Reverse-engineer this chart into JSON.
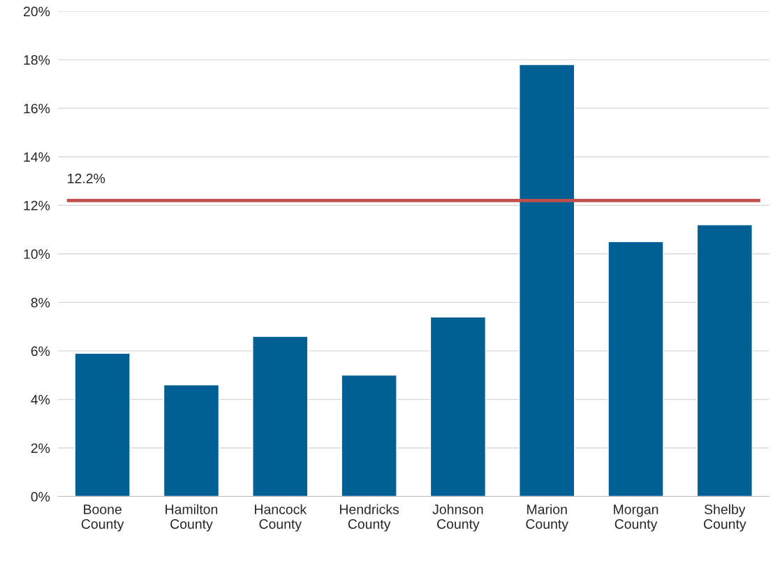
{
  "chart_data": {
    "type": "bar",
    "categories": [
      "Boone\nCounty",
      "Hamilton\nCounty",
      "Hancock\nCounty",
      "Hendricks\nCounty",
      "Johnson\nCounty",
      "Marion\nCounty",
      "Morgan\nCounty",
      "Shelby\nCounty"
    ],
    "values": [
      5.9,
      4.6,
      6.6,
      5.0,
      7.4,
      17.8,
      10.5,
      11.2
    ],
    "color": "#006094",
    "ylim": [
      0,
      20
    ],
    "yticks": [
      {
        "value": 0,
        "label": "0%"
      },
      {
        "value": 2,
        "label": "2%"
      },
      {
        "value": 4,
        "label": "4%"
      },
      {
        "value": 6,
        "label": "6%"
      },
      {
        "value": 8,
        "label": "8%"
      },
      {
        "value": 10,
        "label": "10%"
      },
      {
        "value": 12,
        "label": "12%"
      },
      {
        "value": 14,
        "label": "14%"
      },
      {
        "value": 16,
        "label": "16%"
      },
      {
        "value": 18,
        "label": "18%"
      },
      {
        "value": 20,
        "label": "20%"
      }
    ],
    "ref_lines": [
      {
        "axis": "y",
        "value": 12.2,
        "label": "12.2%",
        "color": "#c0504d"
      }
    ],
    "grid": "y",
    "legend": false
  }
}
